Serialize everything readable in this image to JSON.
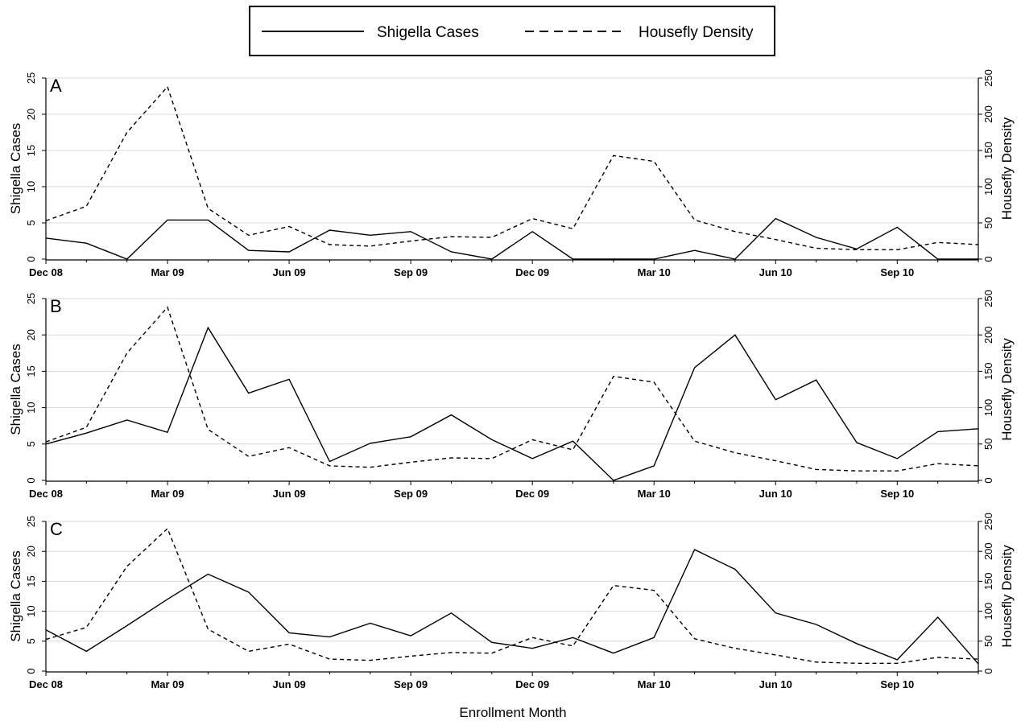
{
  "legend": {
    "solid_label": "Shigella Cases",
    "dashed_label": "Housefly Density"
  },
  "chart_data": {
    "type": "line",
    "xlabel": "Enrollment Month",
    "ylabel_left": "Shigella Cases",
    "ylabel_right": "Housefly Density",
    "ylim_left": [
      0,
      25
    ],
    "ylim_right": [
      0,
      250
    ],
    "yticks_left": [
      0,
      5,
      10,
      15,
      20,
      25
    ],
    "yticks_right": [
      0,
      50,
      100,
      150,
      200,
      250
    ],
    "grid": true,
    "legend_position": "top-center",
    "months": [
      "Dec 08",
      "Jan 09",
      "Feb 09",
      "Mar 09",
      "Apr 09",
      "May 09",
      "Jun 09",
      "Jul 09",
      "Aug 09",
      "Sep 09",
      "Oct 09",
      "Nov 09",
      "Dec 09",
      "Jan 10",
      "Feb 10",
      "Mar 10",
      "Apr 10",
      "May 10",
      "Jun 10",
      "Jul 10",
      "Aug 10",
      "Sep 10",
      "Oct 10",
      "Nov 10"
    ],
    "x_tick_labels": [
      "Dec 08",
      "Mar 09",
      "Jun 09",
      "Sep 09",
      "Dec 09",
      "Mar 10",
      "Jun 10",
      "Sep 10"
    ],
    "housefly_density": [
      53,
      73,
      175,
      238,
      70,
      33,
      45,
      20,
      18,
      25,
      31,
      30,
      56,
      42,
      143,
      135,
      54,
      38,
      27,
      15,
      13,
      13,
      23,
      20
    ],
    "panels": [
      {
        "label": "A",
        "shigella_cases": [
          2.9,
          2.2,
          0,
          5.4,
          5.4,
          1.2,
          1.0,
          4.0,
          3.3,
          3.8,
          1.0,
          0,
          3.8,
          0,
          0,
          0,
          1.2,
          0,
          5.6,
          3.0,
          1.4,
          4.4,
          0,
          0
        ]
      },
      {
        "label": "B",
        "shigella_cases": [
          5.0,
          6.5,
          8.3,
          6.6,
          21.0,
          12.0,
          13.9,
          2.6,
          5.1,
          6.0,
          9.0,
          5.6,
          3.0,
          5.4,
          0,
          2.0,
          15.5,
          20.0,
          11.1,
          13.8,
          5.2,
          3.0,
          6.7,
          7.1
        ]
      },
      {
        "label": "C",
        "shigella_cases": [
          6.9,
          3.3,
          7.6,
          12.0,
          16.2,
          13.2,
          6.4,
          5.7,
          8.0,
          5.9,
          9.7,
          4.8,
          3.8,
          5.6,
          3.0,
          5.6,
          20.3,
          17.0,
          9.7,
          7.8,
          4.6,
          1.9,
          9.0,
          1.2
        ]
      }
    ]
  }
}
